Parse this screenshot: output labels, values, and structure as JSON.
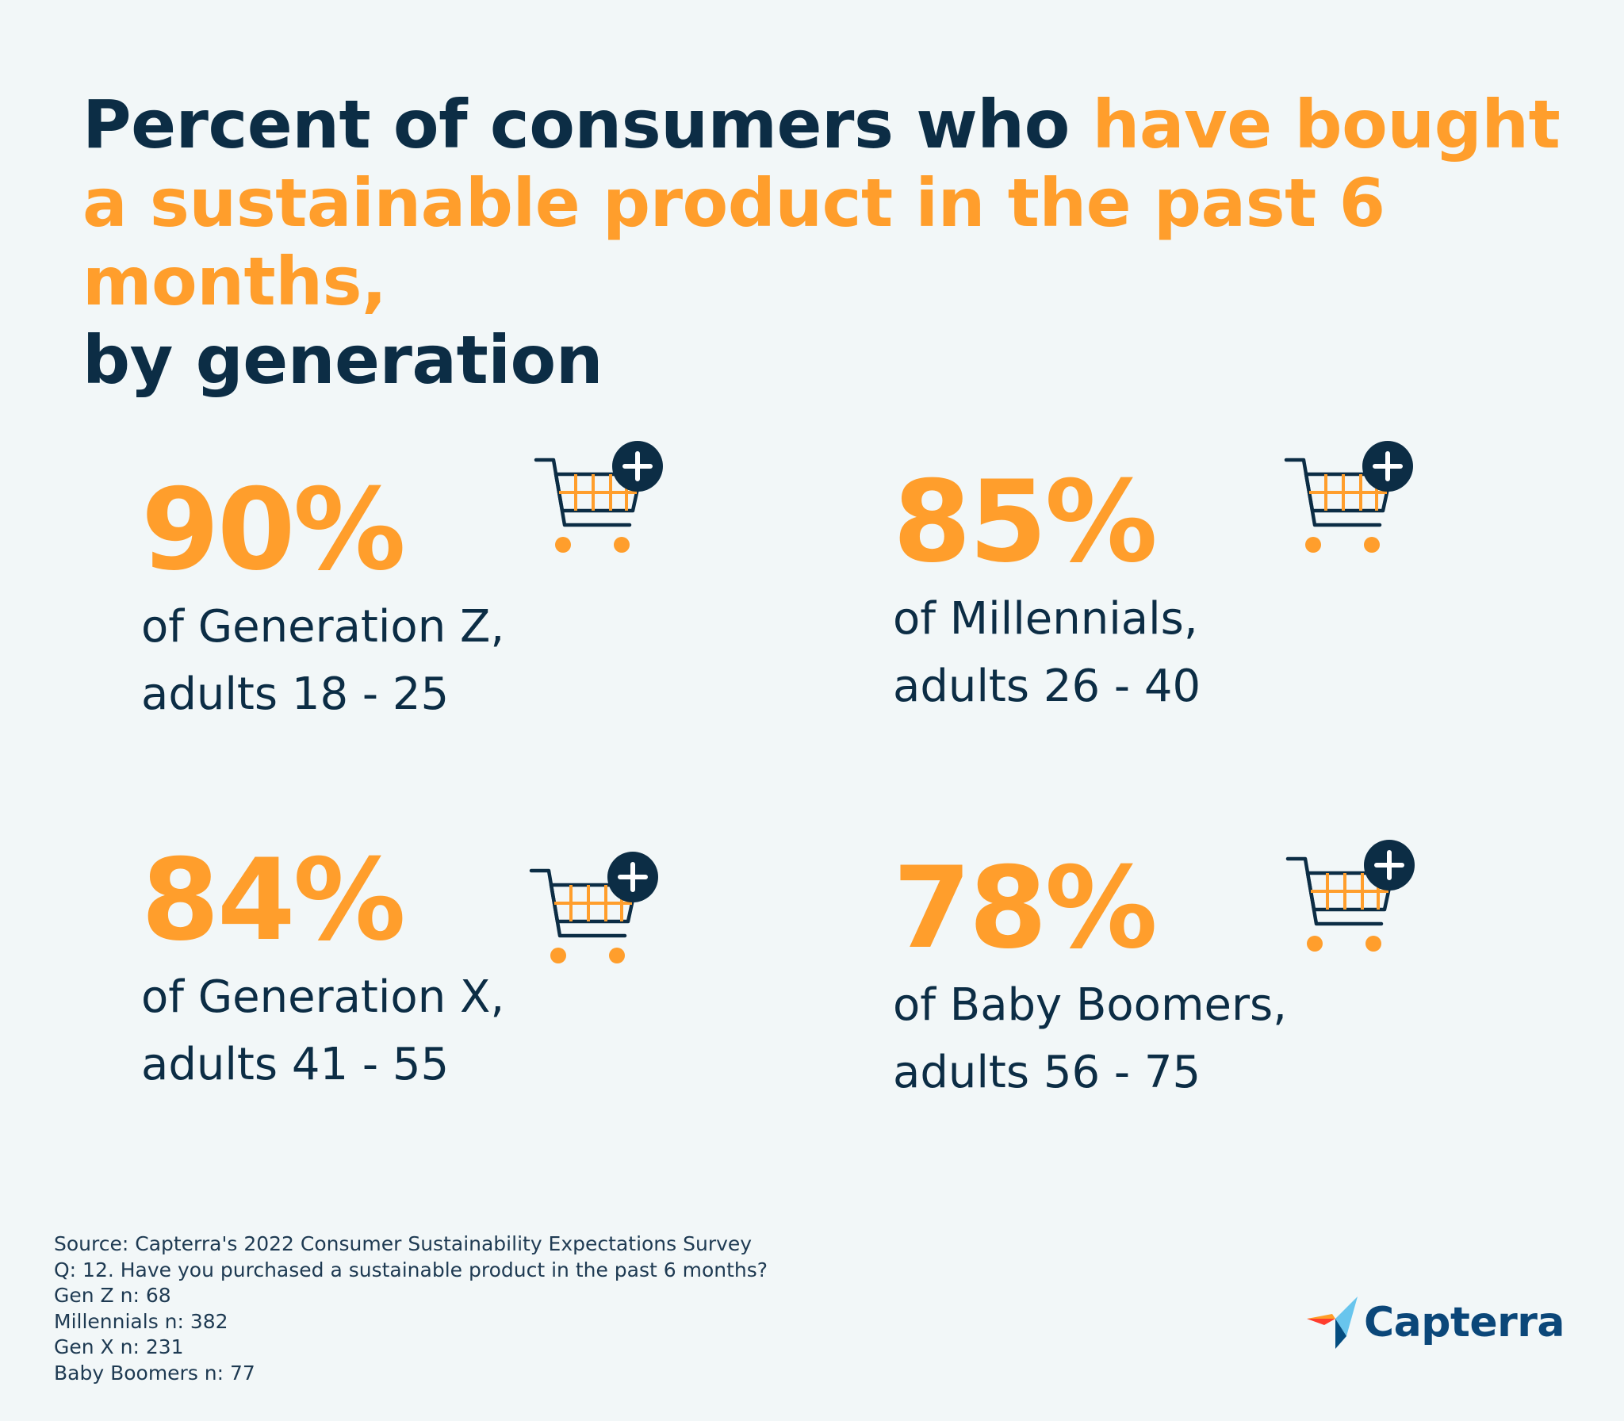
{
  "title": {
    "part1": "Percent of consumers who ",
    "highlight": "have bought a sustainable product in the past 6 months,",
    "part2": "by generation"
  },
  "stats": [
    {
      "percent": "90%",
      "line1": "of Generation Z,",
      "line2": "adults 18 - 25"
    },
    {
      "percent": "85%",
      "line1": "of Millennials,",
      "line2": "adults 26 - 40"
    },
    {
      "percent": "84%",
      "line1": "of Generation X,",
      "line2": "adults 41 - 55"
    },
    {
      "percent": "78%",
      "line1": "of Baby Boomers,",
      "line2": "adults 56 - 75"
    }
  ],
  "source": {
    "line1": "Source: Capterra's 2022 Consumer Sustainability Expectations Survey",
    "line2": "Q: 12. Have you purchased a sustainable product in the past 6 months?",
    "line3": "Gen Z n: 68",
    "line4": "Millennials n: 382",
    "line5": "Gen X n: 231",
    "line6": "Baby Boomers n: 77"
  },
  "brand": {
    "name": "Capterra"
  },
  "icons": {
    "cart": "shopping-cart-plus-icon",
    "logo": "capterra-logo-icon"
  },
  "colors": {
    "accent": "#ff9e2c",
    "dark": "#0c2d45",
    "background": "#f2f7f8",
    "brand_blue": "#0b4779"
  }
}
